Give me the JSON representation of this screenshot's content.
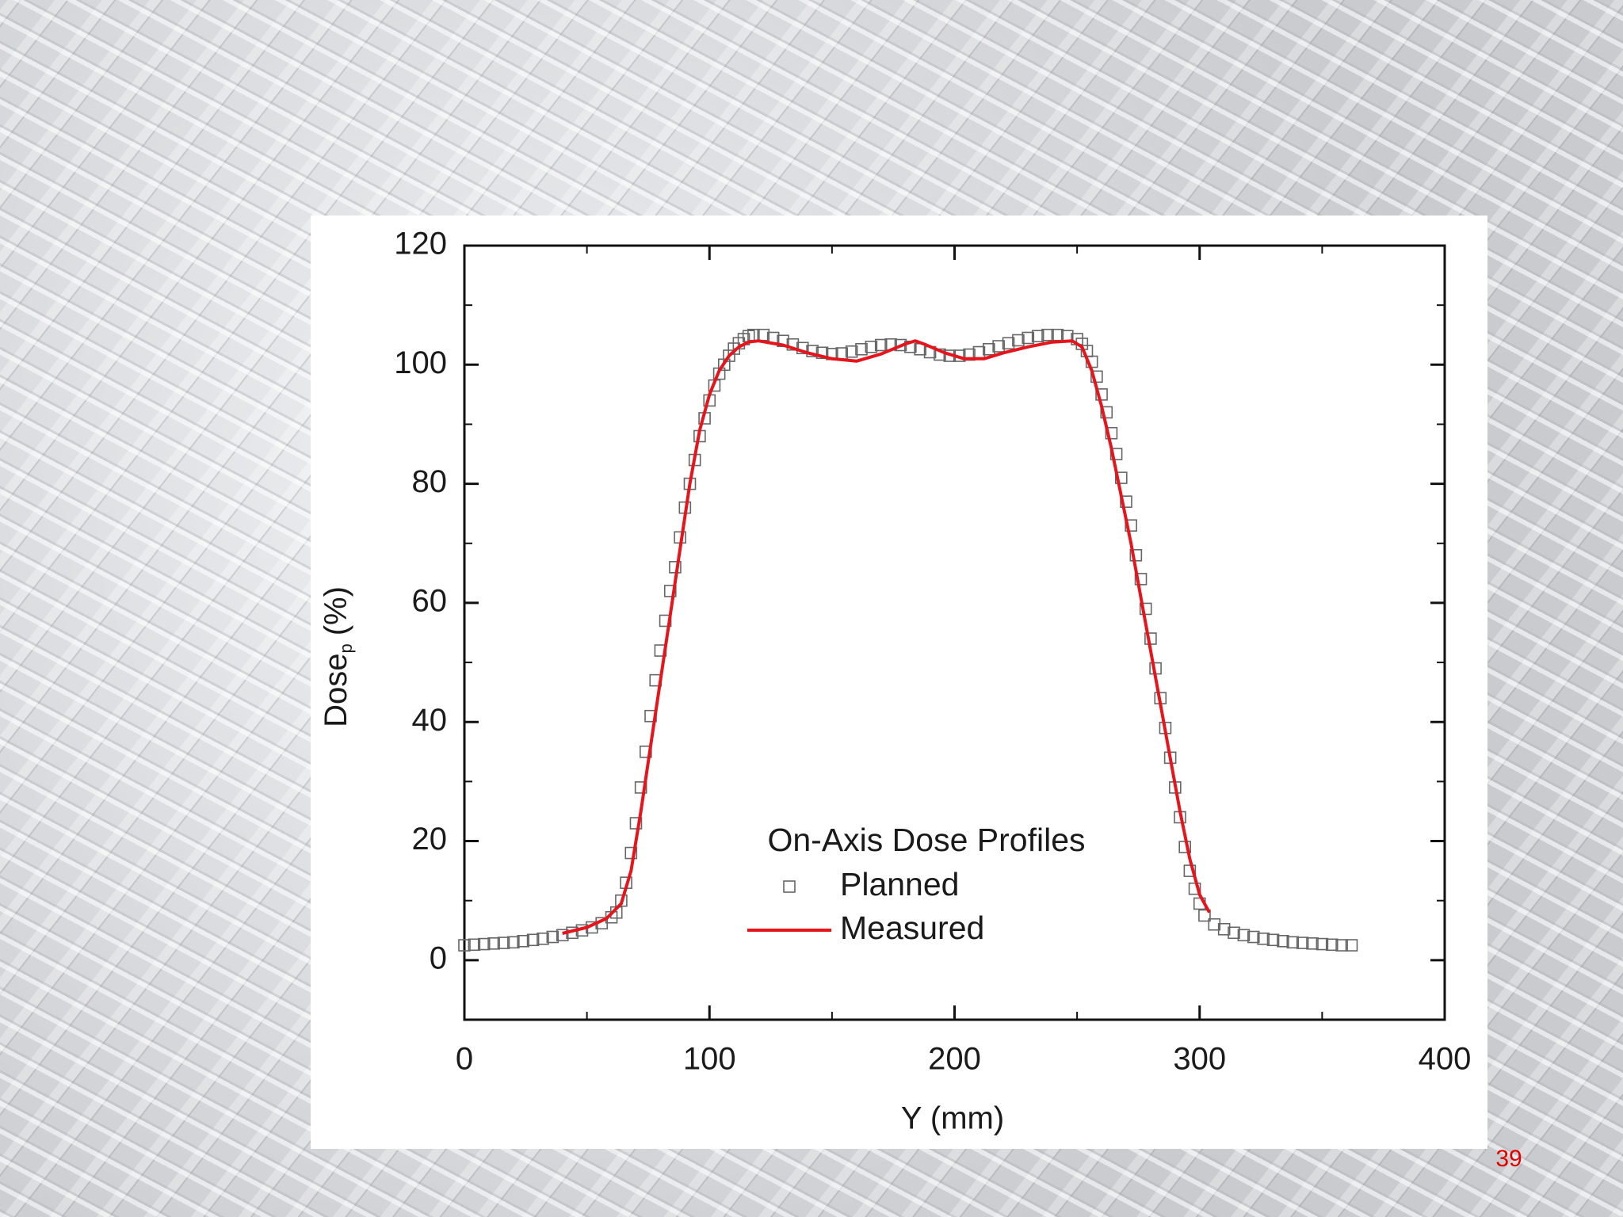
{
  "chart_data": {
    "type": "scatter-line",
    "xlabel": "Y (mm)",
    "ylabel": {
      "text": "Dose",
      "sub": "p",
      "tail": "(%)"
    },
    "legend_title": "On-Axis Dose Profiles",
    "xlim": [
      0,
      400
    ],
    "xticks": [
      0,
      100,
      200,
      300,
      400
    ],
    "ylim": [
      -10,
      120
    ],
    "yticks": [
      0,
      20,
      40,
      60,
      80,
      100,
      120
    ],
    "series": [
      {
        "name": "Planned",
        "color": "#666666",
        "marker": "square",
        "x": [
          0,
          4,
          8,
          12,
          16,
          20,
          24,
          28,
          32,
          36,
          40,
          44,
          48,
          52,
          56,
          60,
          62,
          64,
          66,
          68,
          70,
          72,
          74,
          76,
          78,
          80,
          82,
          84,
          86,
          88,
          90,
          92,
          94,
          96,
          98,
          100,
          102,
          104,
          106,
          108,
          110,
          112,
          114,
          116,
          118,
          122,
          126,
          130,
          134,
          138,
          142,
          146,
          150,
          154,
          158,
          162,
          166,
          170,
          174,
          178,
          182,
          186,
          190,
          194,
          198,
          202,
          206,
          210,
          214,
          218,
          222,
          226,
          230,
          234,
          238,
          242,
          246,
          250,
          252,
          254,
          256,
          258,
          260,
          262,
          264,
          266,
          268,
          270,
          272,
          274,
          276,
          278,
          280,
          282,
          284,
          286,
          288,
          290,
          292,
          294,
          296,
          298,
          300,
          302,
          306,
          310,
          314,
          318,
          322,
          326,
          330,
          334,
          338,
          342,
          346,
          350,
          354,
          358,
          362
        ],
        "y": [
          2.5,
          2.6,
          2.7,
          2.8,
          2.9,
          3.0,
          3.2,
          3.4,
          3.6,
          3.9,
          4.2,
          4.6,
          5.0,
          5.5,
          6.2,
          7.2,
          8,
          10,
          13,
          18,
          23,
          29,
          35,
          41,
          47,
          52,
          57,
          62,
          66,
          71,
          76,
          80,
          84,
          88,
          91,
          94,
          96.5,
          98.5,
          100,
          101.5,
          102.7,
          103.6,
          104.3,
          104.8,
          105,
          105,
          104.5,
          104,
          103.4,
          102.8,
          102.3,
          102,
          101.8,
          101.9,
          102.2,
          102.6,
          103,
          103.3,
          103.4,
          103.3,
          103,
          102.6,
          102.1,
          101.7,
          101.5,
          101.5,
          101.7,
          102.1,
          102.6,
          103.1,
          103.6,
          104.1,
          104.5,
          104.8,
          105,
          105,
          104.8,
          104.3,
          103.5,
          102.3,
          100.5,
          98,
          95,
          92,
          88.5,
          85,
          81,
          77,
          73,
          68,
          64,
          59,
          54,
          49,
          44,
          39,
          34,
          29,
          24,
          19,
          15,
          12,
          9.5,
          7.5,
          6,
          5.2,
          4.6,
          4.2,
          3.9,
          3.6,
          3.4,
          3.2,
          3.0,
          2.9,
          2.8,
          2.7,
          2.6,
          2.5,
          2.5
        ]
      },
      {
        "name": "Measured",
        "color": "#e8141c",
        "x": [
          40,
          50,
          58,
          64,
          68,
          72,
          76,
          80,
          84,
          88,
          92,
          96,
          100,
          104,
          108,
          112,
          116,
          120,
          130,
          140,
          150,
          160,
          170,
          180,
          184,
          188,
          196,
          204,
          212,
          220,
          230,
          240,
          248,
          252,
          256,
          260,
          264,
          268,
          272,
          276,
          280,
          284,
          288,
          292,
          296,
          300,
          304
        ],
        "y": [
          4.5,
          5.5,
          7,
          9.5,
          15,
          25,
          36,
          47,
          58,
          69,
          80,
          89,
          95,
          99,
          101.5,
          103,
          103.8,
          104,
          103.3,
          102,
          101,
          100.6,
          101.8,
          103.5,
          104,
          103.4,
          102,
          101,
          101,
          102,
          103,
          103.8,
          104,
          103,
          99,
          93,
          86,
          78,
          70,
          61,
          52,
          43,
          34,
          25,
          17,
          11,
          8
        ]
      }
    ]
  },
  "page_number": "39"
}
